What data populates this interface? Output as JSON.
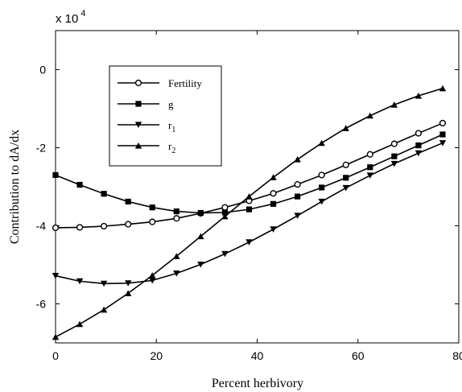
{
  "chart_data": {
    "type": "line",
    "xlabel": "Percent herbivory",
    "ylabel": "Contribution to dA/dx",
    "scale_label": {
      "base": "x 10",
      "exponent": "4"
    },
    "xlim": [
      0,
      80
    ],
    "ylim": [
      -7,
      1
    ],
    "x_ticks": [
      0,
      20,
      40,
      60,
      80
    ],
    "y_ticks": [
      0,
      -2,
      -4,
      -6
    ],
    "grid": false,
    "legend_position": "upper-left",
    "series": [
      {
        "name": "Fertility",
        "marker": "circle",
        "x": [
          0,
          4.8,
          9.6,
          14.4,
          19.2,
          24,
          28.8,
          33.6,
          38.4,
          43.2,
          48,
          52.8,
          57.6,
          62.4,
          67.2,
          72,
          76.8
        ],
        "y": [
          -4.05,
          -4.04,
          -4.01,
          -3.96,
          -3.9,
          -3.81,
          -3.68,
          -3.53,
          -3.36,
          -3.17,
          -2.94,
          -2.7,
          -2.44,
          -2.17,
          -1.9,
          -1.63,
          -1.37
        ]
      },
      {
        "name": "g",
        "marker": "square",
        "x": [
          0,
          4.8,
          9.6,
          14.4,
          19.2,
          24,
          28.8,
          33.6,
          38.4,
          43.2,
          48,
          52.8,
          57.6,
          62.4,
          67.2,
          72,
          76.8
        ],
        "y": [
          -2.7,
          -2.95,
          -3.18,
          -3.38,
          -3.53,
          -3.63,
          -3.67,
          -3.66,
          -3.58,
          -3.44,
          -3.25,
          -3.02,
          -2.77,
          -2.5,
          -2.22,
          -1.94,
          -1.66
        ]
      },
      {
        "name": "r1",
        "marker": "triangle-down",
        "x": [
          0,
          4.8,
          9.6,
          14.4,
          19.2,
          24,
          28.8,
          33.6,
          38.4,
          43.2,
          48,
          52.8,
          57.6,
          62.4,
          67.2,
          72,
          76.8
        ],
        "y": [
          -5.28,
          -5.42,
          -5.48,
          -5.47,
          -5.4,
          -5.22,
          -4.99,
          -4.72,
          -4.42,
          -4.09,
          -3.74,
          -3.38,
          -3.03,
          -2.71,
          -2.41,
          -2.14,
          -1.88
        ]
      },
      {
        "name": "r2",
        "marker": "triangle-up",
        "x": [
          0,
          4.8,
          9.6,
          14.4,
          19.2,
          24,
          28.8,
          33.6,
          38.4,
          43.2,
          48,
          52.8,
          57.6,
          62.4,
          67.2,
          72,
          76.8
        ],
        "y": [
          -6.85,
          -6.52,
          -6.15,
          -5.73,
          -5.27,
          -4.78,
          -4.27,
          -3.76,
          -3.25,
          -2.76,
          -2.3,
          -1.88,
          -1.5,
          -1.18,
          -0.9,
          -0.67,
          -0.48
        ]
      }
    ]
  },
  "legend": {
    "items": [
      {
        "base": "Fertility",
        "sub": ""
      },
      {
        "base": "g",
        "sub": ""
      },
      {
        "base": "r",
        "sub": "1"
      },
      {
        "base": "r",
        "sub": "2"
      }
    ]
  }
}
